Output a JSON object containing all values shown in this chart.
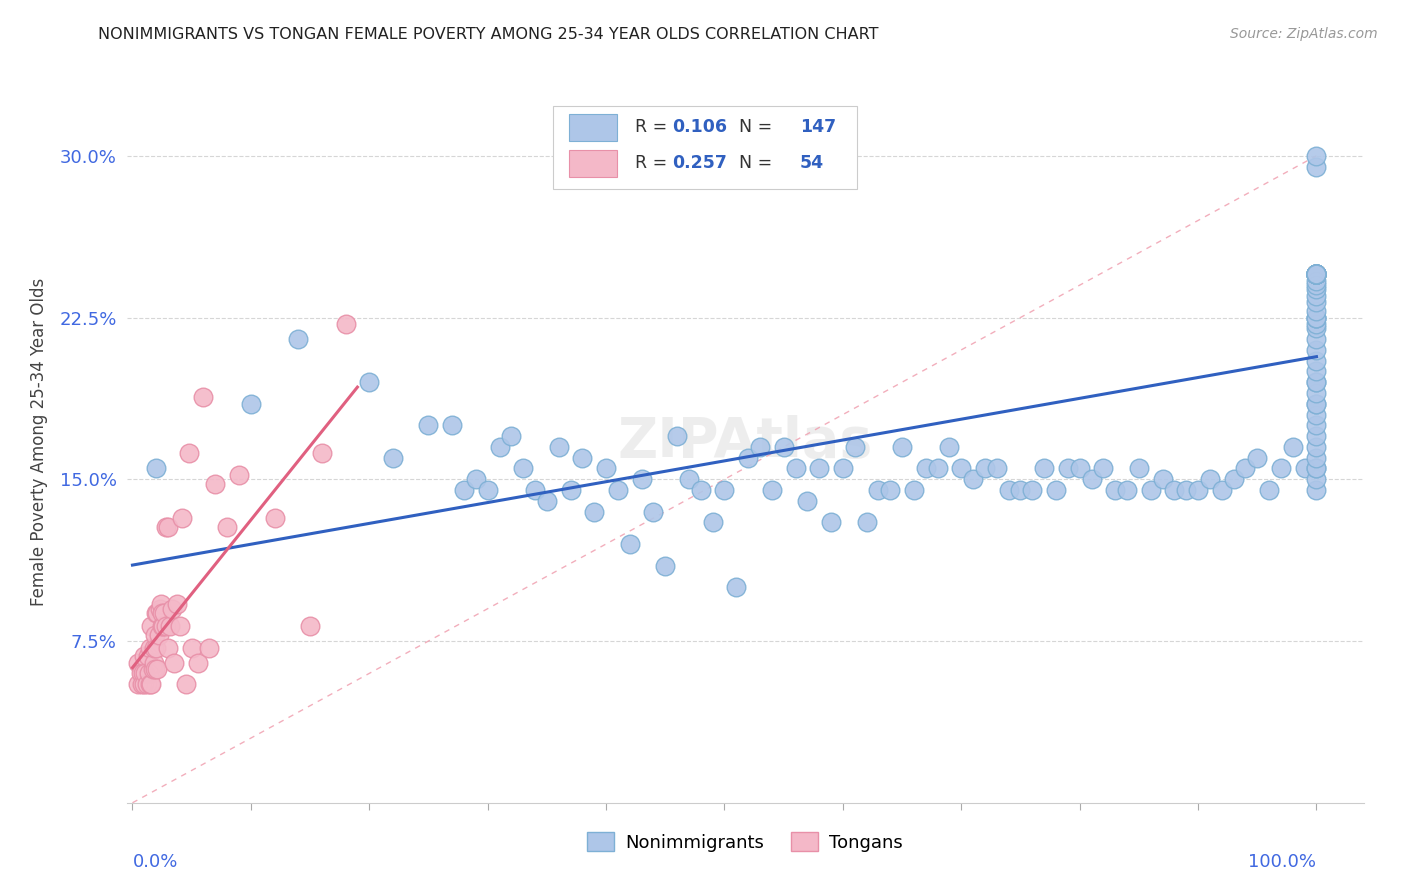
{
  "title": "NONIMMIGRANTS VS TONGAN FEMALE POVERTY AMONG 25-34 YEAR OLDS CORRELATION CHART",
  "source": "Source: ZipAtlas.com",
  "ylabel": "Female Poverty Among 25-34 Year Olds",
  "ytick_labels": [
    "7.5%",
    "15.0%",
    "22.5%",
    "30.0%"
  ],
  "ytick_values": [
    0.075,
    0.15,
    0.225,
    0.3
  ],
  "legend_blue_R": "0.106",
  "legend_blue_N": "147",
  "legend_pink_R": "0.257",
  "legend_pink_N": "54",
  "blue_fill": "#AEC6E8",
  "blue_edge": "#7EB0D5",
  "pink_fill": "#F4B8C8",
  "pink_edge": "#E890A8",
  "blue_line_color": "#3060C0",
  "pink_line_color": "#E06080",
  "diag_line_color": "#F0A0B0",
  "background": "#FFFFFF",
  "blue_scatter_x": [
    0.02,
    0.1,
    0.14,
    0.2,
    0.22,
    0.25,
    0.27,
    0.28,
    0.29,
    0.3,
    0.31,
    0.32,
    0.33,
    0.34,
    0.35,
    0.36,
    0.37,
    0.38,
    0.39,
    0.4,
    0.41,
    0.42,
    0.43,
    0.44,
    0.45,
    0.46,
    0.47,
    0.48,
    0.49,
    0.5,
    0.51,
    0.52,
    0.53,
    0.54,
    0.55,
    0.56,
    0.57,
    0.58,
    0.59,
    0.6,
    0.61,
    0.62,
    0.63,
    0.64,
    0.65,
    0.66,
    0.67,
    0.68,
    0.69,
    0.7,
    0.71,
    0.72,
    0.73,
    0.74,
    0.75,
    0.76,
    0.77,
    0.78,
    0.79,
    0.8,
    0.81,
    0.82,
    0.83,
    0.84,
    0.85,
    0.86,
    0.87,
    0.88,
    0.89,
    0.9,
    0.91,
    0.92,
    0.93,
    0.94,
    0.95,
    0.96,
    0.97,
    0.98,
    0.99,
    1.0,
    1.0,
    1.0,
    1.0,
    1.0,
    1.0,
    1.0,
    1.0,
    1.0,
    1.0,
    1.0,
    1.0,
    1.0,
    1.0,
    1.0,
    1.0,
    1.0,
    1.0,
    1.0,
    1.0,
    1.0,
    1.0,
    1.0,
    1.0,
    1.0,
    1.0,
    1.0,
    1.0,
    1.0,
    1.0,
    1.0,
    1.0,
    1.0,
    1.0,
    1.0,
    1.0,
    1.0,
    1.0,
    1.0,
    1.0,
    1.0,
    1.0,
    1.0,
    1.0,
    1.0,
    1.0,
    1.0,
    1.0,
    1.0,
    1.0,
    1.0,
    1.0,
    1.0,
    1.0,
    1.0,
    1.0,
    1.0,
    1.0,
    1.0,
    1.0,
    1.0,
    1.0,
    1.0,
    1.0,
    1.0
  ],
  "blue_scatter_y": [
    0.155,
    0.185,
    0.215,
    0.195,
    0.16,
    0.175,
    0.175,
    0.145,
    0.15,
    0.145,
    0.165,
    0.17,
    0.155,
    0.145,
    0.14,
    0.165,
    0.145,
    0.16,
    0.135,
    0.155,
    0.145,
    0.12,
    0.15,
    0.135,
    0.11,
    0.17,
    0.15,
    0.145,
    0.13,
    0.145,
    0.1,
    0.16,
    0.165,
    0.145,
    0.165,
    0.155,
    0.14,
    0.155,
    0.13,
    0.155,
    0.165,
    0.13,
    0.145,
    0.145,
    0.165,
    0.145,
    0.155,
    0.155,
    0.165,
    0.155,
    0.15,
    0.155,
    0.155,
    0.145,
    0.145,
    0.145,
    0.155,
    0.145,
    0.155,
    0.155,
    0.15,
    0.155,
    0.145,
    0.145,
    0.155,
    0.145,
    0.15,
    0.145,
    0.145,
    0.145,
    0.15,
    0.145,
    0.15,
    0.155,
    0.16,
    0.145,
    0.155,
    0.165,
    0.155,
    0.145,
    0.15,
    0.155,
    0.155,
    0.16,
    0.165,
    0.17,
    0.175,
    0.18,
    0.185,
    0.185,
    0.19,
    0.195,
    0.195,
    0.2,
    0.205,
    0.21,
    0.215,
    0.22,
    0.222,
    0.225,
    0.225,
    0.225,
    0.228,
    0.232,
    0.235,
    0.238,
    0.24,
    0.242,
    0.245,
    0.245,
    0.245,
    0.245,
    0.245,
    0.245,
    0.245,
    0.245,
    0.245,
    0.245,
    0.245,
    0.245,
    0.245,
    0.245,
    0.245,
    0.245,
    0.245,
    0.245,
    0.245,
    0.245,
    0.245,
    0.245,
    0.245,
    0.245,
    0.245,
    0.245,
    0.245,
    0.245,
    0.245,
    0.245,
    0.295,
    0.245,
    0.245,
    0.245,
    0.245,
    0.3
  ],
  "pink_scatter_x": [
    0.005,
    0.005,
    0.007,
    0.008,
    0.009,
    0.01,
    0.01,
    0.011,
    0.012,
    0.013,
    0.014,
    0.015,
    0.015,
    0.016,
    0.016,
    0.017,
    0.018,
    0.018,
    0.019,
    0.019,
    0.02,
    0.02,
    0.021,
    0.021,
    0.022,
    0.023,
    0.024,
    0.025,
    0.025,
    0.026,
    0.027,
    0.028,
    0.028,
    0.03,
    0.03,
    0.032,
    0.033,
    0.035,
    0.038,
    0.04,
    0.042,
    0.045,
    0.048,
    0.05,
    0.055,
    0.06,
    0.065,
    0.07,
    0.08,
    0.09,
    0.12,
    0.15,
    0.16,
    0.18
  ],
  "pink_scatter_y": [
    0.055,
    0.065,
    0.06,
    0.055,
    0.06,
    0.055,
    0.068,
    0.06,
    0.055,
    0.068,
    0.06,
    0.055,
    0.072,
    0.082,
    0.055,
    0.062,
    0.065,
    0.072,
    0.062,
    0.078,
    0.072,
    0.088,
    0.062,
    0.088,
    0.078,
    0.09,
    0.092,
    0.082,
    0.088,
    0.082,
    0.088,
    0.082,
    0.128,
    0.072,
    0.128,
    0.082,
    0.09,
    0.065,
    0.092,
    0.082,
    0.132,
    0.055,
    0.162,
    0.072,
    0.065,
    0.188,
    0.072,
    0.148,
    0.128,
    0.152,
    0.132,
    0.082,
    0.162,
    0.222
  ]
}
